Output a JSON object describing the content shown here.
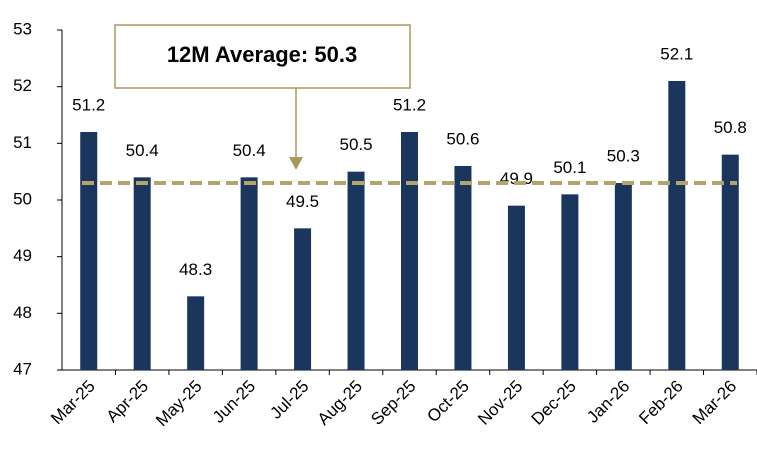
{
  "chart_data": {
    "type": "bar",
    "categories": [
      "Mar-25",
      "Apr-25",
      "May-25",
      "Jun-25",
      "Jul-25",
      "Aug-25",
      "Sep-25",
      "Oct-25",
      "Nov-25",
      "Dec-25",
      "Jan-26",
      "Feb-26",
      "Mar-26"
    ],
    "values": [
      51.2,
      50.4,
      48.3,
      50.4,
      49.5,
      50.5,
      51.2,
      50.6,
      49.9,
      50.1,
      50.3,
      52.1,
      50.8
    ],
    "color": "#1b365d",
    "ylim": [
      47,
      53
    ],
    "yticks": [
      47,
      48,
      49,
      50,
      51,
      52,
      53
    ],
    "grid": false,
    "reference_line": {
      "value": 50.3,
      "label": "12M Average: 50.3",
      "color": "#b3a46b"
    }
  }
}
